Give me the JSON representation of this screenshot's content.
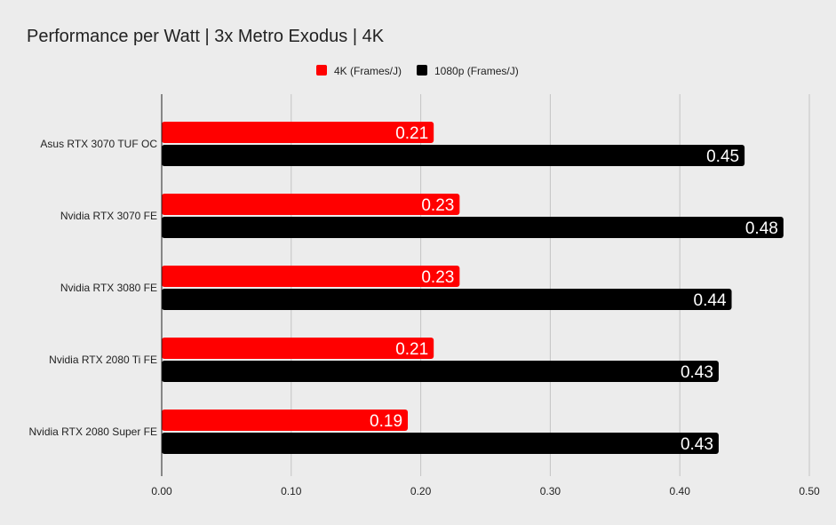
{
  "chart_data": {
    "type": "bar",
    "orientation": "horizontal",
    "title": "Performance per Watt | 3x Metro Exodus | 4K",
    "categories": [
      "Asus RTX 3070 TUF OC",
      "Nvidia RTX 3070 FE",
      "Nvidia RTX 3080 FE",
      "Nvidia RTX 2080 Ti FE",
      "Nvidia RTX 2080 Super FE"
    ],
    "series": [
      {
        "name": "4K (Frames/J)",
        "color": "#ff0000",
        "values": [
          0.21,
          0.23,
          0.23,
          0.21,
          0.19
        ],
        "labels": [
          "0.21",
          "0.23",
          "0.23",
          "0.21",
          "0.19"
        ]
      },
      {
        "name": "1080p (Frames/J)",
        "color": "#000000",
        "values": [
          0.45,
          0.48,
          0.44,
          0.43,
          0.43
        ],
        "labels": [
          "0.45",
          "0.48",
          "0.44",
          "0.43",
          "0.43"
        ]
      }
    ],
    "xlim": [
      0,
      0.5
    ],
    "xticks": [
      "0.00",
      "0.10",
      "0.20",
      "0.30",
      "0.40",
      "0.50"
    ],
    "xlabel": "",
    "ylabel": "",
    "legend_position": "top-center",
    "grid": "vertical"
  }
}
